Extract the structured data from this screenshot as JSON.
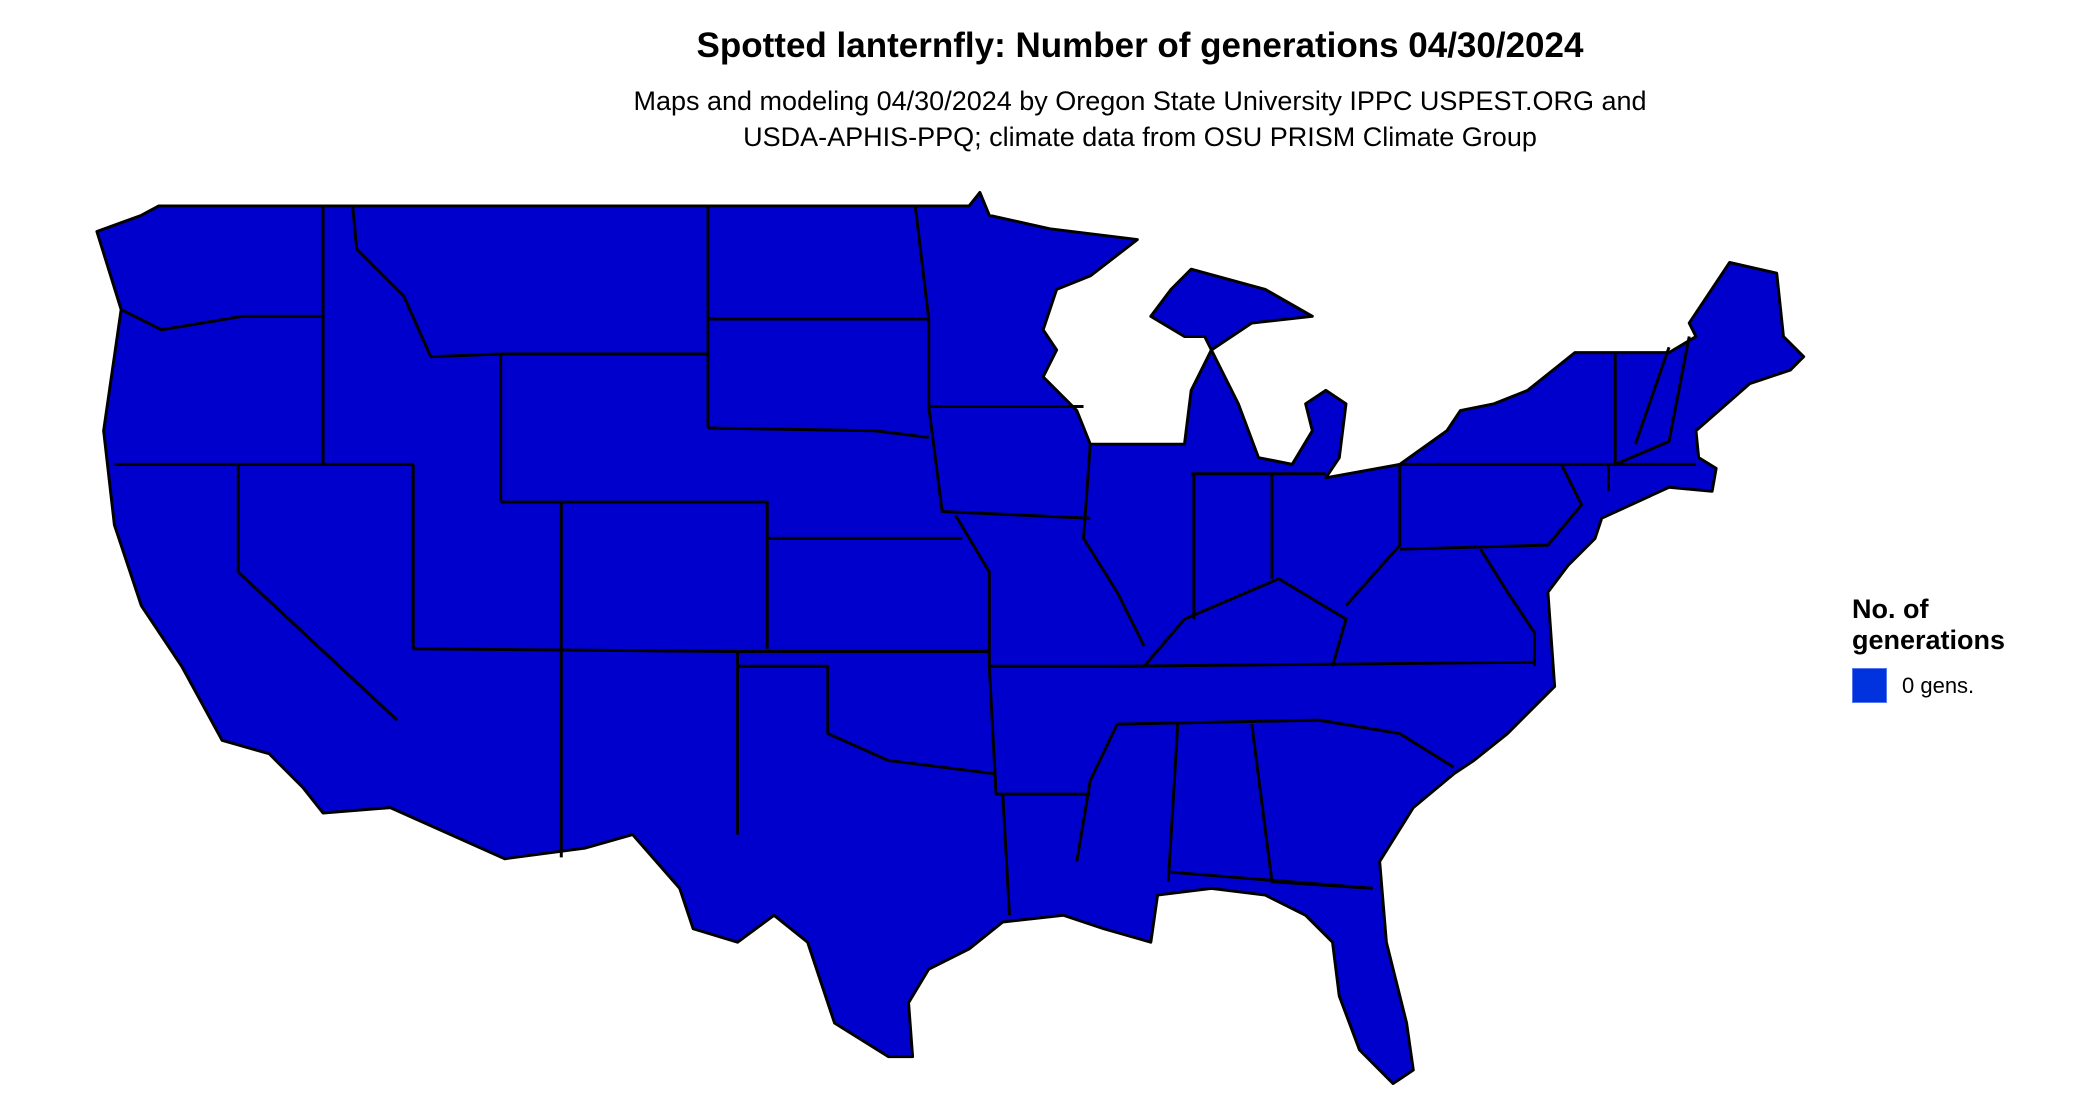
{
  "title": "Spotted lanternfly: Number of generations 04/30/2024",
  "subtitle_line1": "Maps and modeling 04/30/2024 by Oregon State University IPPC USPEST.ORG and",
  "subtitle_line2": "USDA-APHIS-PPQ; climate data from OSU PRISM Climate Group",
  "map": {
    "region": "Contiguous United States",
    "fill_color": "#0000CC",
    "border_color": "#000000"
  },
  "legend": {
    "title_line1": "No. of",
    "title_line2": "generations",
    "items": [
      {
        "label": "0 gens.",
        "color": "#0033DD"
      }
    ]
  }
}
